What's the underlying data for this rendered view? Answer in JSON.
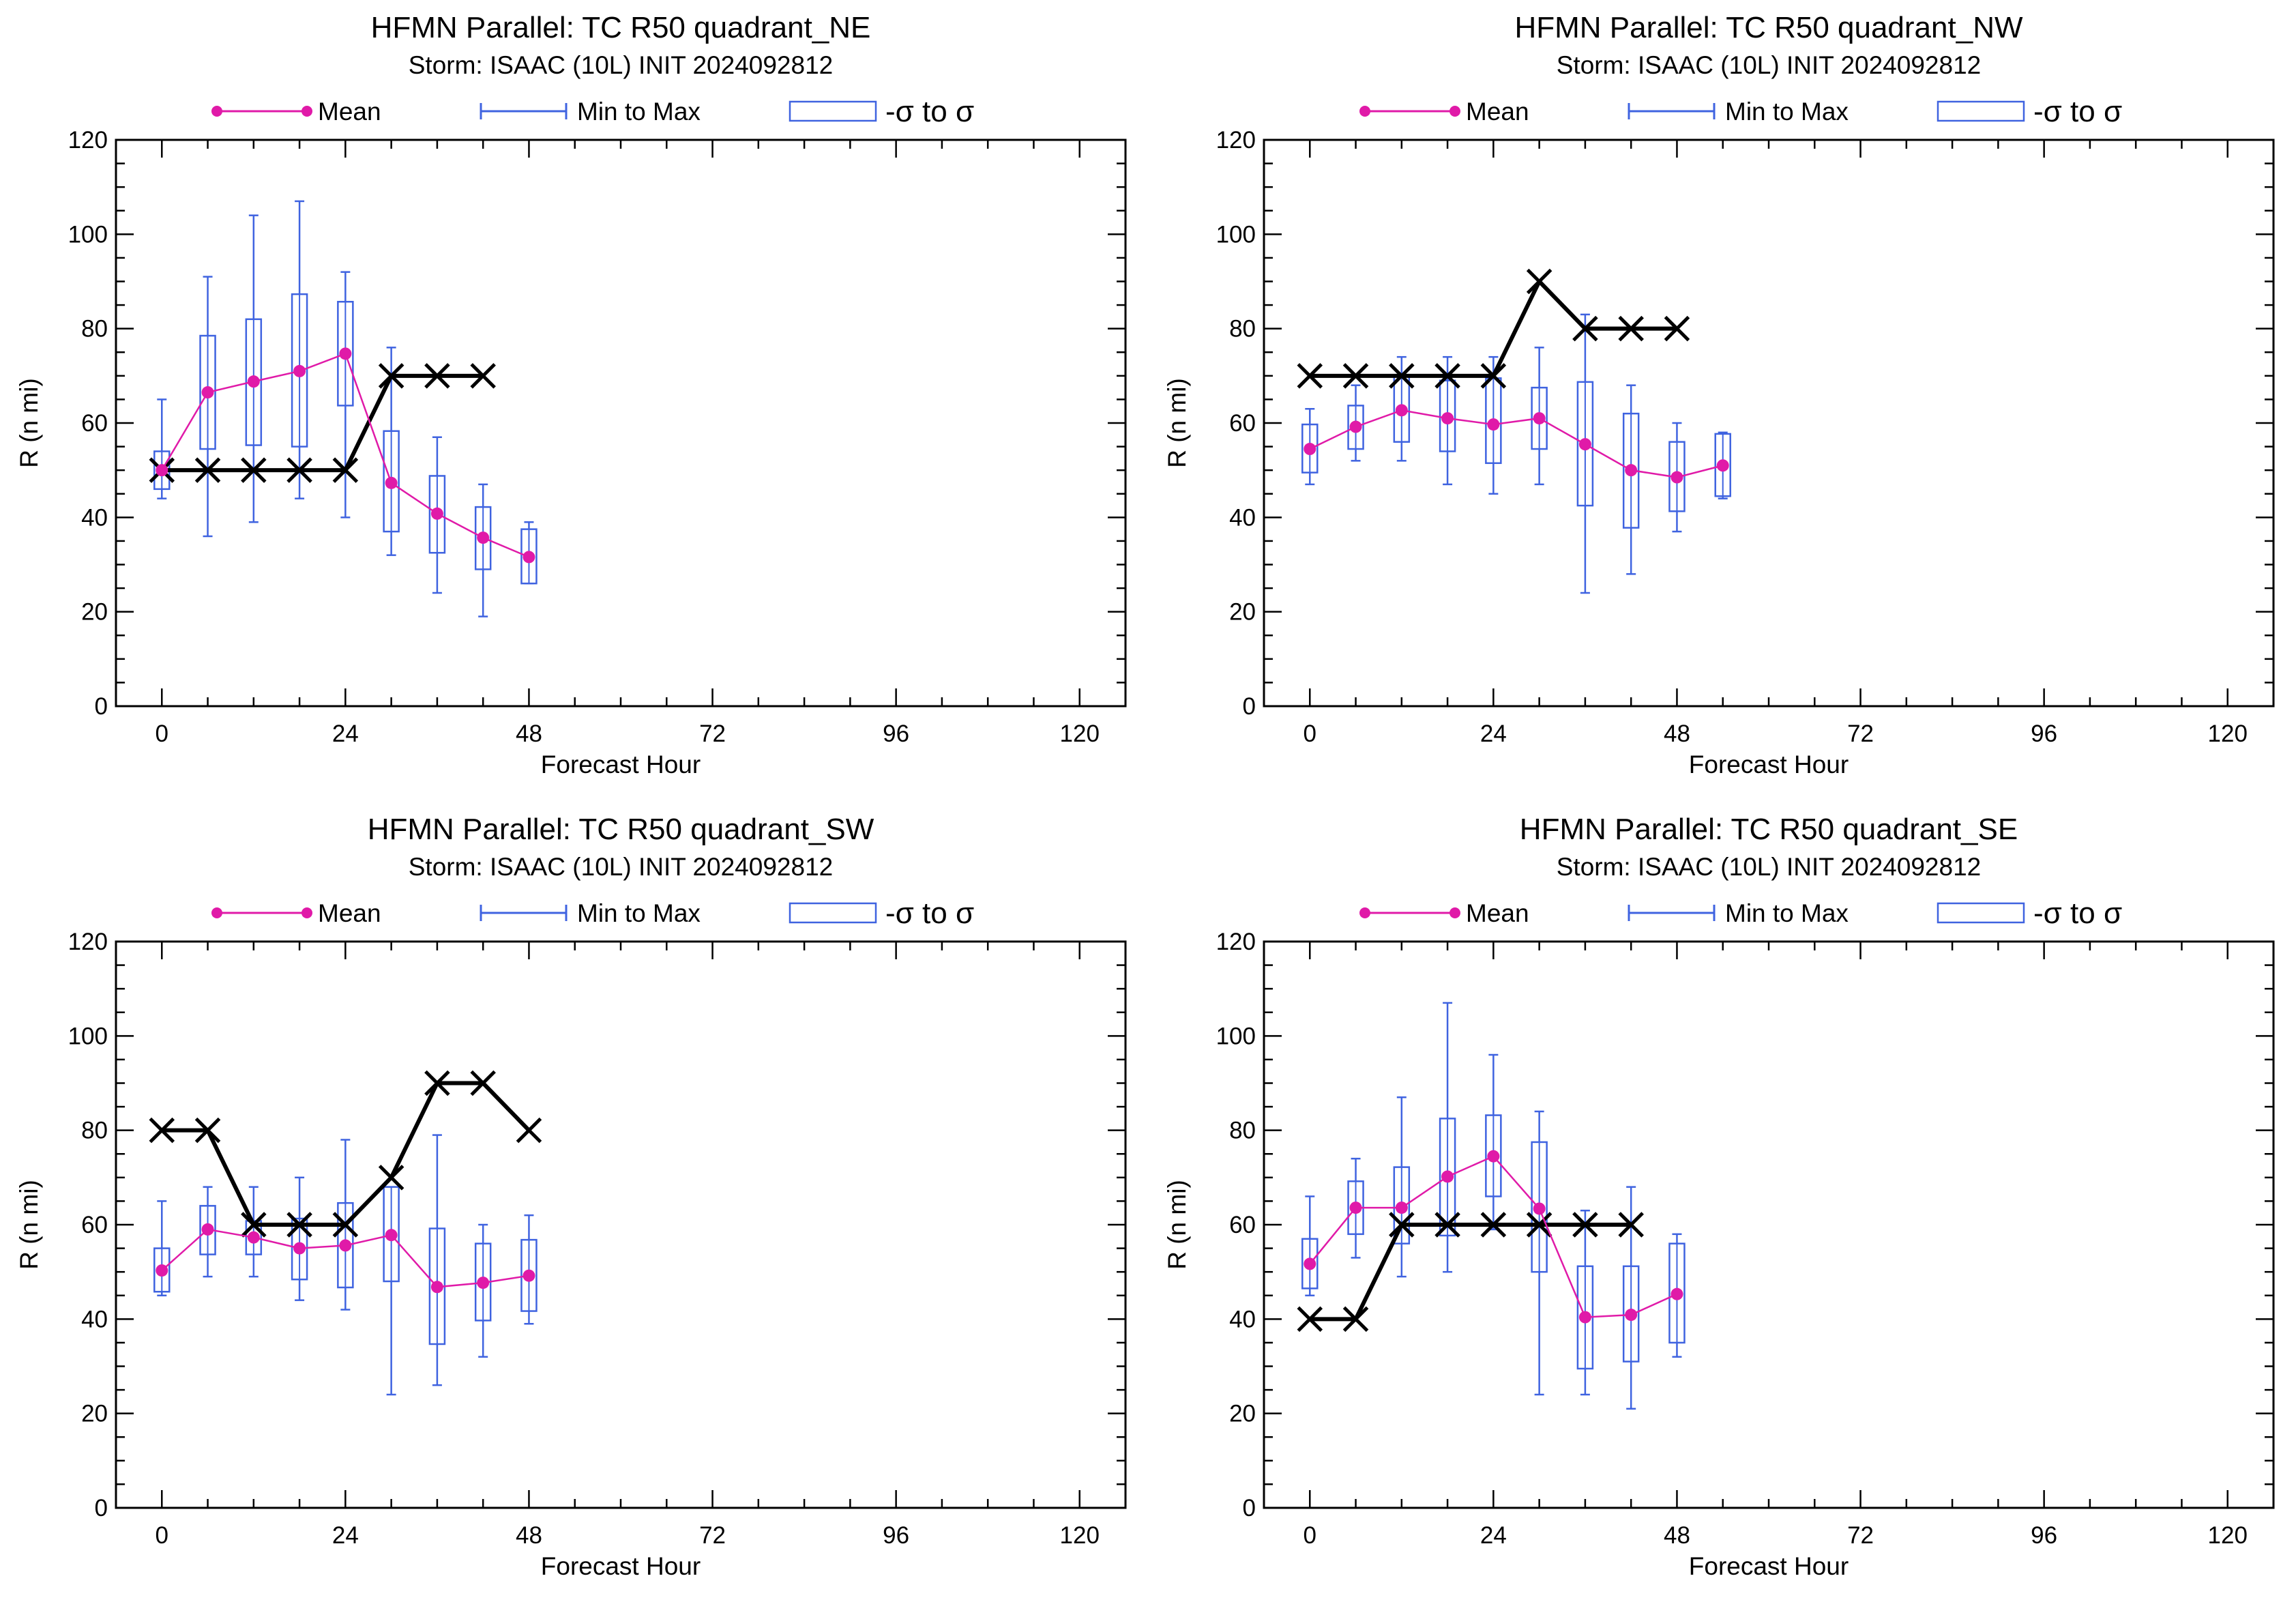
{
  "colors": {
    "mean": "#e01aa8",
    "range": "#3f63e0",
    "best_track": "#000000",
    "axes": "#000000",
    "background": "#ffffff"
  },
  "legend": {
    "mean": "Mean",
    "range": "Min to Max",
    "sigma": "-σ to σ"
  },
  "chart_data": [
    {
      "type": "box",
      "title": "HFMN Parallel: TC  R50 quadrant_NE",
      "subtitle": "Storm: ISAAC (10L) INIT 2024092812",
      "xlabel": "Forecast Hour",
      "ylabel": "R (n mi)",
      "xlim": [
        -6,
        126
      ],
      "ylim": [
        0,
        120
      ],
      "xticks": [
        0,
        24,
        48,
        72,
        96,
        120
      ],
      "yticks": [
        0,
        20,
        40,
        60,
        80,
        100,
        120
      ],
      "grid": false,
      "legend_position": "top",
      "forecast_hours": [
        0,
        6,
        12,
        18,
        24,
        30,
        36,
        42,
        48
      ],
      "mean": [
        50,
        66.5,
        68.8,
        71,
        74.7,
        47.3,
        40.8,
        35.7,
        31.6
      ],
      "sigma_low": [
        46,
        54.5,
        55.3,
        55,
        63.7,
        37,
        32.5,
        29,
        26
      ],
      "sigma_high": [
        54,
        78.5,
        82,
        87.3,
        85.7,
        58.3,
        48.8,
        42.2,
        37.5
      ],
      "min": [
        44,
        36,
        39,
        44,
        40,
        32,
        24,
        19,
        26
      ],
      "max": [
        65,
        91,
        104,
        107,
        92,
        76,
        57,
        47,
        39
      ],
      "best_track": {
        "hours": [
          0,
          6,
          12,
          18,
          24,
          30,
          36,
          42
        ],
        "values": [
          50,
          50,
          50,
          50,
          50,
          70,
          70,
          70
        ]
      }
    },
    {
      "type": "box",
      "title": "HFMN Parallel: TC  R50 quadrant_NW",
      "subtitle": "Storm: ISAAC (10L) INIT 2024092812",
      "xlabel": "Forecast Hour",
      "ylabel": "R (n mi)",
      "xlim": [
        -6,
        126
      ],
      "ylim": [
        0,
        120
      ],
      "xticks": [
        0,
        24,
        48,
        72,
        96,
        120
      ],
      "yticks": [
        0,
        20,
        40,
        60,
        80,
        100,
        120
      ],
      "grid": false,
      "legend_position": "top",
      "forecast_hours": [
        0,
        6,
        12,
        18,
        24,
        30,
        36,
        42,
        48,
        54
      ],
      "mean": [
        54.5,
        59.2,
        62.7,
        61,
        59.7,
        61,
        55.5,
        50,
        48.5,
        51
      ],
      "sigma_low": [
        49.5,
        54.5,
        56,
        54,
        51.5,
        54.5,
        42.5,
        37.8,
        41.3,
        44.5
      ],
      "sigma_high": [
        59.7,
        63.7,
        70,
        69,
        69.5,
        67.5,
        68.7,
        62,
        56,
        57.7
      ],
      "min": [
        47,
        52,
        52,
        47,
        45,
        47,
        24,
        28,
        37,
        44
      ],
      "max": [
        63,
        68,
        74,
        74,
        74,
        76,
        83,
        68,
        60,
        58
      ],
      "best_track": {
        "hours": [
          0,
          6,
          12,
          18,
          24,
          30,
          36,
          42,
          48
        ],
        "values": [
          70,
          70,
          70,
          70,
          70,
          90,
          80,
          80,
          80
        ]
      }
    },
    {
      "type": "box",
      "title": "HFMN Parallel: TC  R50 quadrant_SW",
      "subtitle": "Storm: ISAAC (10L) INIT 2024092812",
      "xlabel": "Forecast Hour",
      "ylabel": "R (n mi)",
      "xlim": [
        -6,
        126
      ],
      "ylim": [
        0,
        120
      ],
      "xticks": [
        0,
        24,
        48,
        72,
        96,
        120
      ],
      "yticks": [
        0,
        20,
        40,
        60,
        80,
        100,
        120
      ],
      "grid": false,
      "legend_position": "top",
      "forecast_hours": [
        0,
        6,
        12,
        18,
        24,
        30,
        36,
        42,
        48
      ],
      "mean": [
        50.3,
        59,
        57.3,
        55,
        55.6,
        57.8,
        46.8,
        47.7,
        49.2
      ],
      "sigma_low": [
        45.8,
        53.7,
        53.7,
        48.4,
        46.7,
        48,
        34.7,
        39.7,
        41.7
      ],
      "sigma_high": [
        55,
        64,
        60.8,
        61.3,
        64.6,
        68,
        59.2,
        56,
        56.8
      ],
      "min": [
        45,
        49,
        49,
        44,
        42,
        24,
        26,
        32,
        39
      ],
      "max": [
        65,
        68,
        68,
        70,
        78,
        68,
        79,
        60,
        62
      ],
      "best_track": {
        "hours": [
          0,
          6,
          12,
          18,
          24,
          30,
          36,
          42,
          48
        ],
        "values": [
          80,
          80,
          60,
          60,
          60,
          70,
          90,
          90,
          80
        ]
      }
    },
    {
      "type": "box",
      "title": "HFMN Parallel: TC  R50 quadrant_SE",
      "subtitle": "Storm: ISAAC (10L) INIT 2024092812",
      "xlabel": "Forecast Hour",
      "ylabel": "R (n mi)",
      "xlim": [
        -6,
        126
      ],
      "ylim": [
        0,
        120
      ],
      "xticks": [
        0,
        24,
        48,
        72,
        96,
        120
      ],
      "yticks": [
        0,
        20,
        40,
        60,
        80,
        100,
        120
      ],
      "grid": false,
      "legend_position": "top",
      "forecast_hours": [
        0,
        6,
        12,
        18,
        24,
        30,
        36,
        42,
        48
      ],
      "mean": [
        51.7,
        63.6,
        63.6,
        70.2,
        74.5,
        63.4,
        40.4,
        40.9,
        45.3
      ],
      "sigma_low": [
        46.5,
        58,
        56,
        57.7,
        66,
        50,
        29.5,
        31,
        35
      ],
      "sigma_high": [
        57,
        69.2,
        72.2,
        82.5,
        83.2,
        77.5,
        51.2,
        51.2,
        56
      ],
      "min": [
        45,
        53,
        49,
        50,
        59,
        24,
        24,
        21,
        32
      ],
      "max": [
        66,
        74,
        87,
        107,
        96,
        84,
        63,
        68,
        58
      ],
      "best_track": {
        "hours": [
          0,
          6,
          12,
          18,
          24,
          30,
          36,
          42
        ],
        "values": [
          40,
          40,
          60,
          60,
          60,
          60,
          60,
          60
        ]
      }
    }
  ]
}
